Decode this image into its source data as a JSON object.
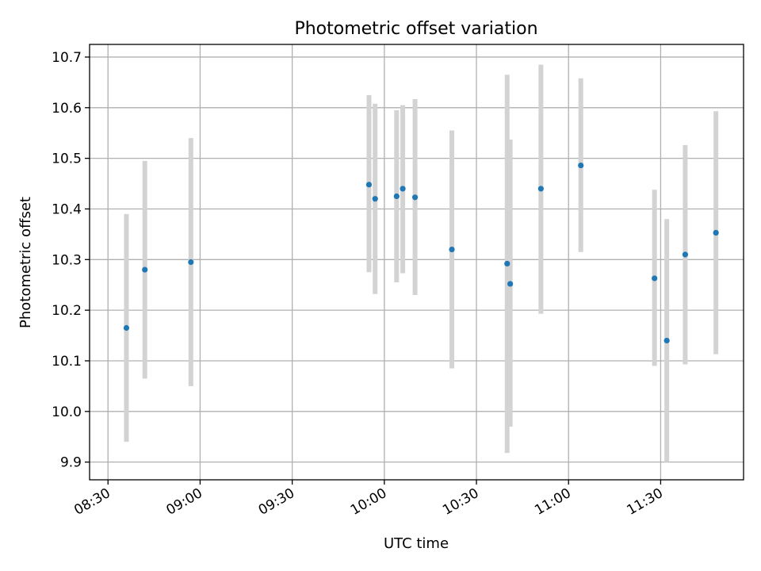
{
  "chart_data": {
    "type": "scatter",
    "title": "Photometric offset variation",
    "xlabel": "UTC time",
    "ylabel": "Photometric offset",
    "xlim": [
      "08:24",
      "11:57"
    ],
    "ylim": [
      9.865,
      10.725
    ],
    "grid": true,
    "x_ticks": [
      "08:30",
      "09:00",
      "09:30",
      "10:00",
      "10:30",
      "11:00",
      "11:30"
    ],
    "y_ticks": [
      "9.9",
      "10.0",
      "10.1",
      "10.2",
      "10.3",
      "10.4",
      "10.5",
      "10.6",
      "10.7"
    ],
    "error_bar_color": "#d3d3d3",
    "point_color": "#1f77b4",
    "series": [
      {
        "points": [
          {
            "t": "08:36",
            "y": 10.165,
            "ylo": 9.94,
            "yhi": 10.39
          },
          {
            "t": "08:42",
            "y": 10.28,
            "ylo": 10.065,
            "yhi": 10.495
          },
          {
            "t": "08:57",
            "y": 10.295,
            "ylo": 10.05,
            "yhi": 10.54
          },
          {
            "t": "09:55",
            "y": 10.448,
            "ylo": 10.275,
            "yhi": 10.625
          },
          {
            "t": "09:57",
            "y": 10.42,
            "ylo": 10.232,
            "yhi": 10.608
          },
          {
            "t": "10:04",
            "y": 10.425,
            "ylo": 10.255,
            "yhi": 10.595
          },
          {
            "t": "10:06",
            "y": 10.44,
            "ylo": 10.273,
            "yhi": 10.605
          },
          {
            "t": "10:10",
            "y": 10.423,
            "ylo": 10.23,
            "yhi": 10.617
          },
          {
            "t": "10:22",
            "y": 10.32,
            "ylo": 10.085,
            "yhi": 10.555
          },
          {
            "t": "10:40",
            "y": 10.292,
            "ylo": 9.918,
            "yhi": 10.665
          },
          {
            "t": "10:41",
            "y": 10.252,
            "ylo": 9.97,
            "yhi": 10.537
          },
          {
            "t": "10:51",
            "y": 10.44,
            "ylo": 10.193,
            "yhi": 10.685
          },
          {
            "t": "11:04",
            "y": 10.486,
            "ylo": 10.315,
            "yhi": 10.658
          },
          {
            "t": "11:28",
            "y": 10.263,
            "ylo": 10.09,
            "yhi": 10.438
          },
          {
            "t": "11:32",
            "y": 10.14,
            "ylo": 9.9,
            "yhi": 10.38
          },
          {
            "t": "11:38",
            "y": 10.31,
            "ylo": 10.093,
            "yhi": 10.526
          },
          {
            "t": "11:48",
            "y": 10.353,
            "ylo": 10.113,
            "yhi": 10.593
          }
        ]
      }
    ]
  }
}
